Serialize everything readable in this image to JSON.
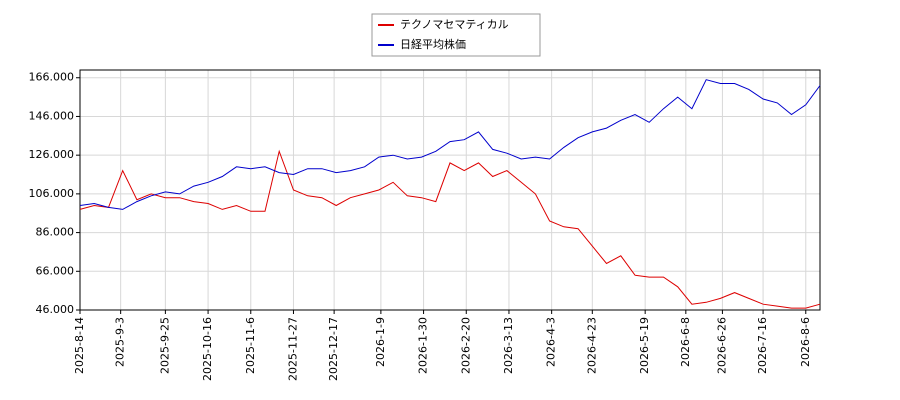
{
  "chart_data": {
    "type": "line",
    "x": [
      "2025-08-14",
      "2025-08-21",
      "2025-08-28",
      "2025-09-04",
      "2025-09-11",
      "2025-09-18",
      "2025-09-25",
      "2025-10-02",
      "2025-10-09",
      "2025-10-16",
      "2025-10-23",
      "2025-10-30",
      "2025-11-06",
      "2025-11-13",
      "2025-11-20",
      "2025-11-27",
      "2025-12-04",
      "2025-12-11",
      "2025-12-18",
      "2025-12-25",
      "2026-01-01",
      "2026-01-08",
      "2026-01-15",
      "2026-01-22",
      "2026-01-29",
      "2026-02-05",
      "2026-02-12",
      "2026-02-19",
      "2026-02-26",
      "2026-03-05",
      "2026-03-12",
      "2026-03-19",
      "2026-03-26",
      "2026-04-02",
      "2026-04-09",
      "2026-04-16",
      "2026-04-23",
      "2026-04-30",
      "2026-05-07",
      "2026-05-14",
      "2026-05-21",
      "2026-05-28",
      "2026-06-04",
      "2026-06-11",
      "2026-06-18",
      "2026-06-25",
      "2026-07-02",
      "2026-07-09",
      "2026-07-16",
      "2026-07-23",
      "2026-07-30",
      "2026-08-06",
      "2026-08-13"
    ],
    "series": [
      {
        "name": "テクノマセマティカル",
        "color": "#dd0000",
        "values": [
          98,
          100,
          99,
          118,
          103,
          106,
          104,
          104,
          102,
          101,
          98,
          100,
          97,
          97,
          128,
          108,
          105,
          104,
          100,
          104,
          106,
          108,
          112,
          105,
          104,
          102,
          122,
          118,
          122,
          115,
          118,
          112,
          106,
          92,
          89,
          88,
          79,
          70,
          74,
          64,
          63,
          63,
          58,
          49,
          50,
          52,
          55,
          52,
          49,
          48,
          47,
          47,
          49
        ]
      },
      {
        "name": "日経平均株価",
        "color": "#0000cc",
        "values": [
          100,
          101,
          99,
          98,
          102,
          105,
          107,
          106,
          110,
          112,
          115,
          120,
          119,
          120,
          117,
          116,
          119,
          119,
          117,
          118,
          120,
          125,
          126,
          124,
          125,
          128,
          133,
          134,
          138,
          129,
          127,
          124,
          125,
          124,
          130,
          135,
          138,
          140,
          144,
          147,
          143,
          150,
          156,
          150,
          165,
          163,
          163,
          160,
          155,
          153,
          147,
          152,
          162
        ]
      }
    ],
    "xlim": [
      "2025-08-14",
      "2026-08-13"
    ],
    "xticks": [
      {
        "value": "2025-08-14",
        "label": "2025-8-14"
      },
      {
        "value": "2025-09-03",
        "label": "2025-9-3"
      },
      {
        "value": "2025-09-25",
        "label": "2025-9-25"
      },
      {
        "value": "2025-10-16",
        "label": "2025-10-16"
      },
      {
        "value": "2025-11-06",
        "label": "2025-11-6"
      },
      {
        "value": "2025-11-27",
        "label": "2025-11-27"
      },
      {
        "value": "2025-12-17",
        "label": "2025-12-17"
      },
      {
        "value": "2026-01-09",
        "label": "2026-1-9"
      },
      {
        "value": "2026-01-30",
        "label": "2026-1-30"
      },
      {
        "value": "2026-02-20",
        "label": "2026-2-20"
      },
      {
        "value": "2026-03-13",
        "label": "2026-3-13"
      },
      {
        "value": "2026-04-03",
        "label": "2026-4-3"
      },
      {
        "value": "2026-04-23",
        "label": "2026-4-23"
      },
      {
        "value": "2026-05-19",
        "label": "2026-5-19"
      },
      {
        "value": "2026-06-08",
        "label": "2026-6-8"
      },
      {
        "value": "2026-06-26",
        "label": "2026-6-26"
      },
      {
        "value": "2026-07-16",
        "label": "2026-7-16"
      },
      {
        "value": "2026-08-06",
        "label": "2026-8-6"
      }
    ],
    "ylim": [
      46,
      170
    ],
    "yticks": [
      {
        "value": 46,
        "label": "46.000"
      },
      {
        "value": 66,
        "label": "66.000"
      },
      {
        "value": 86,
        "label": "86.000"
      },
      {
        "value": 106,
        "label": "106.000"
      },
      {
        "value": 126,
        "label": "126.000"
      },
      {
        "value": 146,
        "label": "146.000"
      },
      {
        "value": 166,
        "label": "166.000"
      }
    ],
    "grid": true,
    "legend": "top"
  }
}
